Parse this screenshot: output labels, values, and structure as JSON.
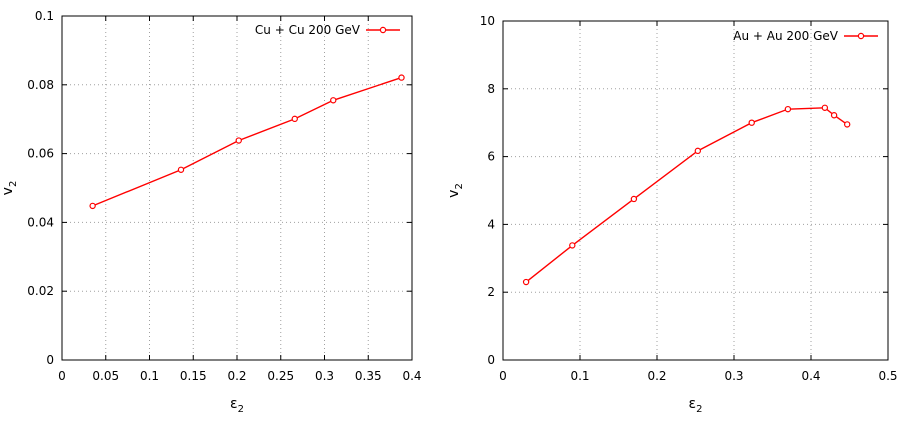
{
  "chart_data": [
    {
      "type": "line",
      "title": "",
      "xlabel": "ε",
      "xlabel_sub": "2",
      "ylabel": "v",
      "ylabel_sub": "2",
      "xlim": [
        0,
        0.4
      ],
      "ylim": [
        0,
        0.1
      ],
      "grid": true,
      "legend_position": "top-right",
      "x_ticks": [
        "0",
        "0.05",
        "0.1",
        "0.15",
        "0.2",
        "0.25",
        "0.3",
        "0.35",
        "0.4"
      ],
      "y_ticks": [
        "0",
        "0.02",
        "0.04",
        "0.06",
        "0.08",
        "0.1"
      ],
      "series": [
        {
          "name": "Cu + Cu 200 GeV",
          "color": "#ff0000",
          "x": [
            0.035,
            0.136,
            0.202,
            0.266,
            0.31,
            0.388
          ],
          "y": [
            0.0448,
            0.0553,
            0.0638,
            0.0701,
            0.0755,
            0.0821
          ]
        }
      ]
    },
    {
      "type": "line",
      "title": "",
      "xlabel": "ε",
      "xlabel_sub": "2",
      "ylabel": "v",
      "ylabel_sub": "2",
      "xlim": [
        0,
        0.5
      ],
      "ylim": [
        0,
        10
      ],
      "grid": true,
      "legend_position": "top-right",
      "x_ticks": [
        "0",
        "0.1",
        "0.2",
        "0.3",
        "0.4",
        "0.5"
      ],
      "y_ticks": [
        "0",
        "2",
        "4",
        "6",
        "8",
        "10"
      ],
      "series": [
        {
          "name": "Au + Au 200 GeV",
          "color": "#ff0000",
          "x": [
            0.03,
            0.09,
            0.17,
            0.253,
            0.323,
            0.37,
            0.418,
            0.43,
            0.447
          ],
          "y": [
            2.3,
            3.38,
            4.75,
            6.17,
            7.0,
            7.4,
            7.44,
            7.22,
            6.95
          ]
        }
      ]
    }
  ]
}
